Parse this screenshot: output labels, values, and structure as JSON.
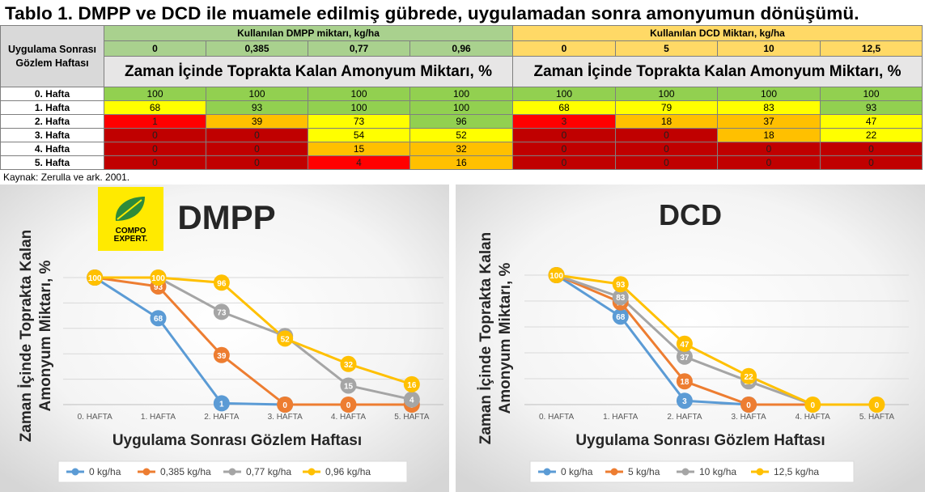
{
  "title": "Tablo 1. DMPP ve DCD ile muamele edilmiş gübrede, uygulamadan sonra amonyumun dönüşümü.",
  "table": {
    "corner_label": "Uygulama Sonrası Gözlem Haftası",
    "dmpp_header": "Kullanılan DMPP miktarı, kg/ha",
    "dcd_header": "Kullanılan DCD Miktarı, kg/ha",
    "dmpp_doses": [
      "0",
      "0,385",
      "0,77",
      "0,96"
    ],
    "dcd_doses": [
      "0",
      "5",
      "10",
      "12,5"
    ],
    "subtitle_dmpp": "Zaman İçinde Toprakta Kalan Amonyum Miktarı, %",
    "subtitle_dcd": "Zaman İçinde Toprakta Kalan Amonyum Miktarı, %",
    "rows": [
      {
        "week": "0. Hafta",
        "dmpp": [
          "100",
          "100",
          "100",
          "100"
        ],
        "dcd": [
          "100",
          "100",
          "100",
          "100"
        ]
      },
      {
        "week": "1. Hafta",
        "dmpp": [
          "68",
          "93",
          "100",
          "100"
        ],
        "dcd": [
          "68",
          "79",
          "83",
          "93"
        ]
      },
      {
        "week": "2. Hafta",
        "dmpp": [
          "1",
          "39",
          "73",
          "96"
        ],
        "dcd": [
          "3",
          "18",
          "37",
          "47"
        ]
      },
      {
        "week": "3. Hafta",
        "dmpp": [
          "0",
          "0",
          "54",
          "52"
        ],
        "dcd": [
          "0",
          "0",
          "18",
          "22"
        ]
      },
      {
        "week": "4. Hafta",
        "dmpp": [
          "0",
          "0",
          "15",
          "32"
        ],
        "dcd": [
          "0",
          "0",
          "0",
          "0"
        ]
      },
      {
        "week": "5. Hafta",
        "dmpp": [
          "0",
          "0",
          "4",
          "16"
        ],
        "dcd": [
          "0",
          "0",
          "0",
          "0"
        ]
      }
    ],
    "heat_colors": {
      "green": "#92d050",
      "yellow": "#ffff00",
      "orange": "#ffc000",
      "red": "#ff0000",
      "darkred": "#c00000"
    },
    "cell_colors": [
      {
        "dmpp": [
          "green",
          "green",
          "green",
          "green"
        ],
        "dcd": [
          "green",
          "green",
          "green",
          "green"
        ]
      },
      {
        "dmpp": [
          "yellow",
          "green",
          "green",
          "green"
        ],
        "dcd": [
          "yellow",
          "yellow",
          "yellow",
          "green"
        ]
      },
      {
        "dmpp": [
          "red",
          "orange",
          "yellow",
          "green"
        ],
        "dcd": [
          "red",
          "orange",
          "orange",
          "yellow"
        ]
      },
      {
        "dmpp": [
          "darkred",
          "darkred",
          "yellow",
          "yellow"
        ],
        "dcd": [
          "darkred",
          "darkred",
          "orange",
          "yellow"
        ]
      },
      {
        "dmpp": [
          "darkred",
          "darkred",
          "orange",
          "orange"
        ],
        "dcd": [
          "darkred",
          "darkred",
          "darkred",
          "darkred"
        ]
      },
      {
        "dmpp": [
          "darkred",
          "darkred",
          "red",
          "orange"
        ],
        "dcd": [
          "darkred",
          "darkred",
          "darkred",
          "darkred"
        ]
      }
    ]
  },
  "source": "Kaynak: Zerulla ve ark. 2001.",
  "logo": {
    "line1": "COMPO",
    "line2": "EXPERT."
  },
  "series_colors": [
    "#5b9bd5",
    "#ed7d31",
    "#a5a5a5",
    "#ffc000"
  ],
  "chart_data": [
    {
      "type": "line",
      "title": "DMPP",
      "xlabel": "Uygulama Sonrası Gözlem Haftası",
      "ylabel": "Zaman İçinde Toprakta Kalan Amonyum Miktarı, %",
      "categories": [
        "0. HAFTA",
        "1. HAFTA",
        "2. HAFTA",
        "3. HAFTA",
        "4. HAFTA",
        "5. HAFTA"
      ],
      "ylim": [
        0,
        100
      ],
      "grid": true,
      "legend": "bottom",
      "series": [
        {
          "name": "0 kg/ha",
          "values": [
            100,
            68,
            1,
            0,
            0,
            0
          ],
          "labels": [
            "100",
            "68",
            "1",
            "0",
            "",
            ""
          ]
        },
        {
          "name": "0,385 kg/ha",
          "values": [
            100,
            93,
            39,
            0,
            0,
            0
          ],
          "labels": [
            "100",
            "93",
            "39",
            "0",
            "0",
            "0"
          ]
        },
        {
          "name": "0,77 kg/ha",
          "values": [
            100,
            100,
            73,
            54,
            15,
            4
          ],
          "labels": [
            "100",
            "100",
            "73",
            "54",
            "15",
            "4"
          ]
        },
        {
          "name": "0,96 kg/ha",
          "values": [
            100,
            100,
            96,
            52,
            32,
            16
          ],
          "labels": [
            "100",
            "100",
            "96",
            "52",
            "32",
            "16"
          ]
        }
      ]
    },
    {
      "type": "line",
      "title": "DCD",
      "xlabel": "Uygulama Sonrası Gözlem Haftası",
      "ylabel": "Zaman İçinde Toprakta Kalan Amonyum Miktarı, %",
      "categories": [
        "0. HAFTA",
        "1. HAFTA",
        "2. HAFTA",
        "3. HAFTA",
        "4. HAFTA",
        "5. HAFTA"
      ],
      "ylim": [
        0,
        100
      ],
      "grid": true,
      "legend": "bottom",
      "series": [
        {
          "name": "0 kg/ha",
          "values": [
            100,
            68,
            3,
            0,
            0,
            0
          ],
          "labels": [
            "100",
            "68",
            "3",
            "0",
            "",
            ""
          ]
        },
        {
          "name": "5 kg/ha",
          "values": [
            100,
            79,
            18,
            0,
            0,
            0
          ],
          "labels": [
            "100",
            "79",
            "18",
            "0",
            "",
            ""
          ]
        },
        {
          "name": "10 kg/ha",
          "values": [
            100,
            83,
            37,
            18,
            0,
            0
          ],
          "labels": [
            "100",
            "83",
            "37",
            "18",
            "",
            ""
          ]
        },
        {
          "name": "12,5 kg/ha",
          "values": [
            100,
            93,
            47,
            22,
            0,
            0
          ],
          "labels": [
            "100",
            "93",
            "47",
            "22",
            "0",
            "0"
          ]
        }
      ]
    }
  ]
}
